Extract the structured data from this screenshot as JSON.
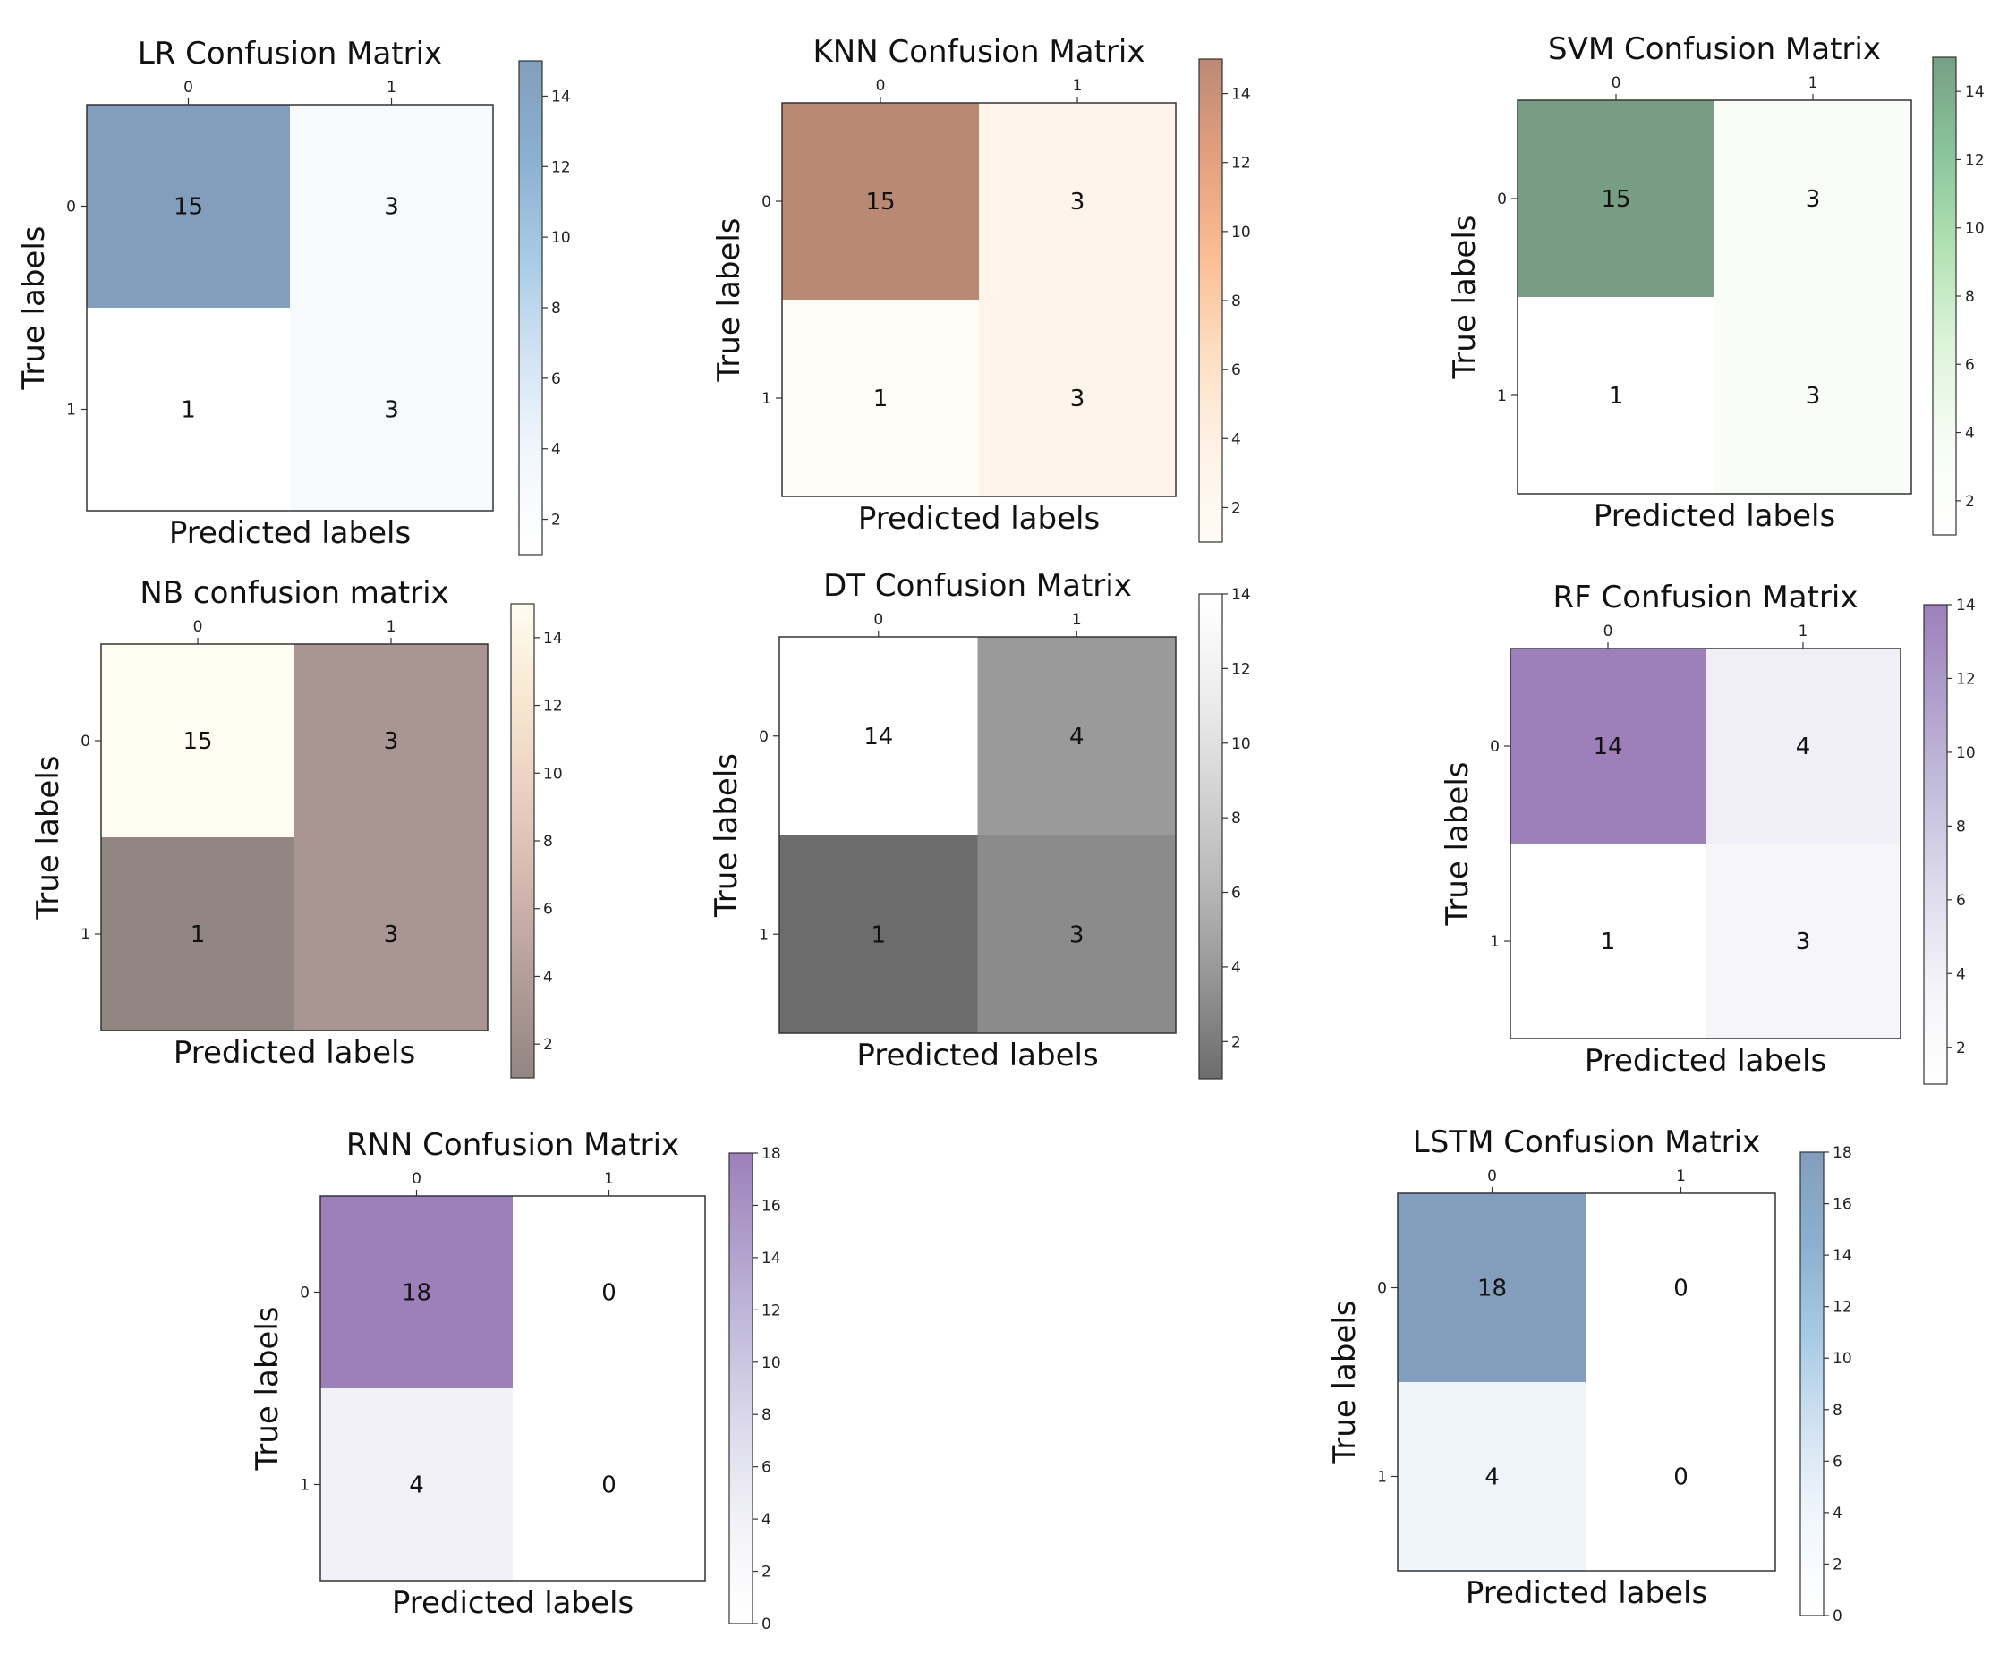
{
  "chart_data": [
    {
      "type": "heatmap",
      "title": "LR Confusion Matrix",
      "xlabel": "Predicted labels",
      "ylabel": "True labels",
      "xticks": [
        "0",
        "1"
      ],
      "yticks": [
        "0",
        "1"
      ],
      "values": [
        [
          15,
          3
        ],
        [
          1,
          3
        ]
      ],
      "colormap": [
        "#ffffff",
        "#eaf2fb",
        "#b6d1ea",
        "#6da7d4",
        "#3f7bb0",
        "#2f5e90"
      ],
      "colorbar": {
        "min": 1,
        "max": 15,
        "ticks": [
          2,
          4,
          6,
          8,
          10,
          12,
          14
        ]
      }
    },
    {
      "type": "heatmap",
      "title": "KNN Confusion Matrix",
      "xlabel": "Predicted labels",
      "ylabel": "True labels",
      "xticks": [
        "0",
        "1"
      ],
      "yticks": [
        "0",
        "1"
      ],
      "values": [
        [
          15,
          3
        ],
        [
          1,
          3
        ]
      ],
      "colormap": [
        "#fff8ef",
        "#fde9d3",
        "#fcc696",
        "#f68f4a",
        "#d05f27",
        "#8c3b18"
      ],
      "colorbar": {
        "min": 1,
        "max": 15,
        "ticks": [
          2,
          4,
          6,
          8,
          10,
          12,
          14
        ]
      }
    },
    {
      "type": "heatmap",
      "title": "SVM Confusion Matrix",
      "xlabel": "Predicted labels",
      "ylabel": "True labels",
      "xticks": [
        "0",
        "1"
      ],
      "yticks": [
        "0",
        "1"
      ],
      "values": [
        [
          15,
          3
        ],
        [
          1,
          3
        ]
      ],
      "colormap": [
        "#ffffff",
        "#eefaec",
        "#c6ecc0",
        "#7fcf82",
        "#3c9c57",
        "#1c5e32"
      ],
      "colorbar": {
        "min": 1,
        "max": 15,
        "ticks": [
          2,
          4,
          6,
          8,
          10,
          12,
          14
        ]
      }
    },
    {
      "type": "heatmap",
      "title": "NB confusion matrix",
      "xlabel": "Predicted labels",
      "ylabel": "True labels",
      "xticks": [
        "0",
        "1"
      ],
      "yticks": [
        "0",
        "1"
      ],
      "values": [
        [
          15,
          3
        ],
        [
          1,
          3
        ]
      ],
      "colormap": [
        "#4a3530",
        "#7e5a52",
        "#b58578",
        "#dcaf98",
        "#f2d8b2",
        "#fffbe8"
      ],
      "colorbar": {
        "min": 1,
        "max": 15,
        "ticks": [
          2,
          4,
          6,
          8,
          10,
          12,
          14
        ]
      }
    },
    {
      "type": "heatmap",
      "title": "DT Confusion Matrix",
      "xlabel": "Predicted labels",
      "ylabel": "True labels",
      "xticks": [
        "0",
        "1"
      ],
      "yticks": [
        "0",
        "1"
      ],
      "values": [
        [
          14,
          4
        ],
        [
          1,
          3
        ]
      ],
      "colormap": [
        "#0a0a0a",
        "#4d4d4d",
        "#888888",
        "#b8b8b8",
        "#e2e2e2",
        "#ffffff"
      ],
      "colorbar": {
        "min": 1,
        "max": 14,
        "ticks": [
          2,
          4,
          6,
          8,
          10,
          12,
          14
        ]
      }
    },
    {
      "type": "heatmap",
      "title": "RF Confusion Matrix",
      "xlabel": "Predicted labels",
      "ylabel": "True labels",
      "xticks": [
        "0",
        "1"
      ],
      "yticks": [
        "0",
        "1"
      ],
      "values": [
        [
          14,
          4
        ],
        [
          1,
          3
        ]
      ],
      "colormap": [
        "#ffffff",
        "#ecebf4",
        "#c8c5e1",
        "#9e95c7",
        "#7c60aa",
        "#5b2c8c"
      ],
      "colorbar": {
        "min": 1,
        "max": 14,
        "ticks": [
          2,
          4,
          6,
          8,
          10,
          12,
          14
        ]
      }
    },
    {
      "type": "heatmap",
      "title": "RNN Confusion Matrix",
      "xlabel": "Predicted labels",
      "ylabel": "True labels",
      "xticks": [
        "0",
        "1"
      ],
      "yticks": [
        "0",
        "1"
      ],
      "values": [
        [
          18,
          0
        ],
        [
          4,
          0
        ]
      ],
      "colormap": [
        "#ffffff",
        "#ecebf4",
        "#c8c5e1",
        "#9e95c7",
        "#7c60aa",
        "#5b2c8c"
      ],
      "colorbar": {
        "min": 0,
        "max": 18,
        "ticks": [
          0,
          2,
          4,
          6,
          8,
          10,
          12,
          14,
          16,
          18
        ]
      }
    },
    {
      "type": "heatmap",
      "title": "LSTM Confusion Matrix",
      "xlabel": "Predicted labels",
      "ylabel": "True labels",
      "xticks": [
        "0",
        "1"
      ],
      "yticks": [
        "0",
        "1"
      ],
      "values": [
        [
          18,
          0
        ],
        [
          4,
          0
        ]
      ],
      "colormap": [
        "#ffffff",
        "#eaf2fb",
        "#b6d1ea",
        "#6da7d4",
        "#3f7bb0",
        "#2f5e90"
      ],
      "colorbar": {
        "min": 0,
        "max": 18,
        "ticks": [
          0,
          2,
          4,
          6,
          8,
          10,
          12,
          14,
          16,
          18
        ]
      }
    }
  ]
}
